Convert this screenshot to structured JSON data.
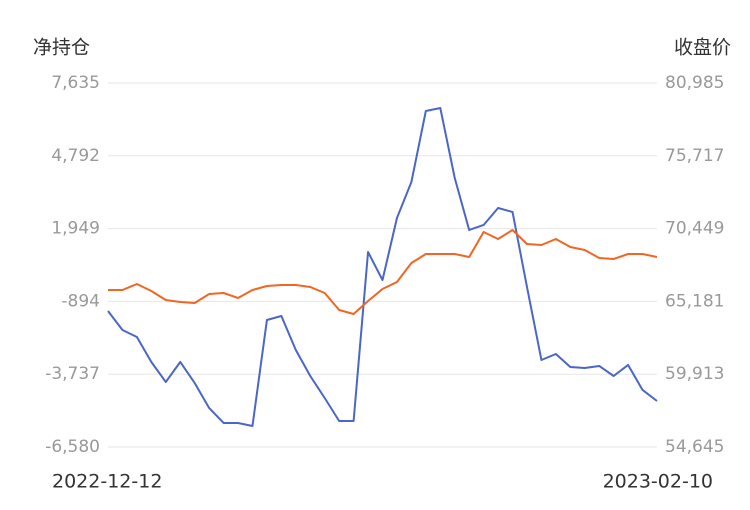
{
  "chart_data": {
    "type": "line",
    "ylabel": "净持仓",
    "y2label": "收盘价",
    "categories": [
      "2022-12-12",
      null,
      null,
      null,
      null,
      null,
      null,
      null,
      null,
      null,
      null,
      null,
      null,
      null,
      null,
      null,
      null,
      null,
      null,
      null,
      null,
      null,
      null,
      null,
      null,
      null,
      null,
      null,
      null,
      null,
      null,
      null,
      null,
      null,
      null,
      null,
      null,
      null,
      "2023-02-10"
    ],
    "series": [
      {
        "color": "#4a66c8",
        "values": [
          -1268,
          -2010,
          -2284,
          -3260,
          -4041,
          -3260,
          -4080,
          -5056,
          -5642,
          -5642,
          -5759,
          -1620,
          -1464,
          -2791,
          -3807,
          -4666,
          -5564,
          -5564,
          1036,
          -58,
          2363,
          3769,
          6542,
          6659,
          3925,
          1895,
          2090,
          2754,
          2598,
          -331,
          -3182,
          -2948,
          -3455,
          -3494,
          -3416,
          -3807,
          -3377,
          -4353,
          -4783
        ]
      },
      {
        "color": "#f26522",
        "axis": "y2",
        "values": [
          66006,
          66006,
          66441,
          65934,
          65283,
          65138,
          65066,
          65717,
          65789,
          65428,
          66006,
          66296,
          66368,
          66368,
          66224,
          65789,
          64559,
          64270,
          65211,
          66079,
          66585,
          67960,
          68611,
          68611,
          68611,
          68394,
          70203,
          69697,
          70348,
          69335,
          69263,
          69697,
          69118,
          68901,
          68322,
          68250,
          68611,
          68611,
          68394
        ]
      }
    ],
    "ylim": [
      -6580,
      7635
    ],
    "yticks": [
      {
        "value": -6580,
        "label": "-6,580"
      },
      {
        "value": -3737,
        "label": "-3,737"
      },
      -894,
      {
        "value": 1949,
        "label": "1,949"
      },
      {
        "value": 4792,
        "label": "4,792"
      },
      {
        "value": 7635,
        "label": "7,635"
      }
    ],
    "y2lim": [
      54645,
      80985
    ],
    "y2ticks": [
      {
        "value": 54645,
        "label": "54,645"
      },
      {
        "value": 59913,
        "label": "59,913"
      },
      {
        "value": 65181,
        "label": "65,181"
      },
      {
        "value": 70449,
        "label": "70,449"
      },
      {
        "value": 75717,
        "label": "75,717"
      },
      {
        "value": 80985,
        "label": "80,985"
      }
    ],
    "grid": true
  }
}
